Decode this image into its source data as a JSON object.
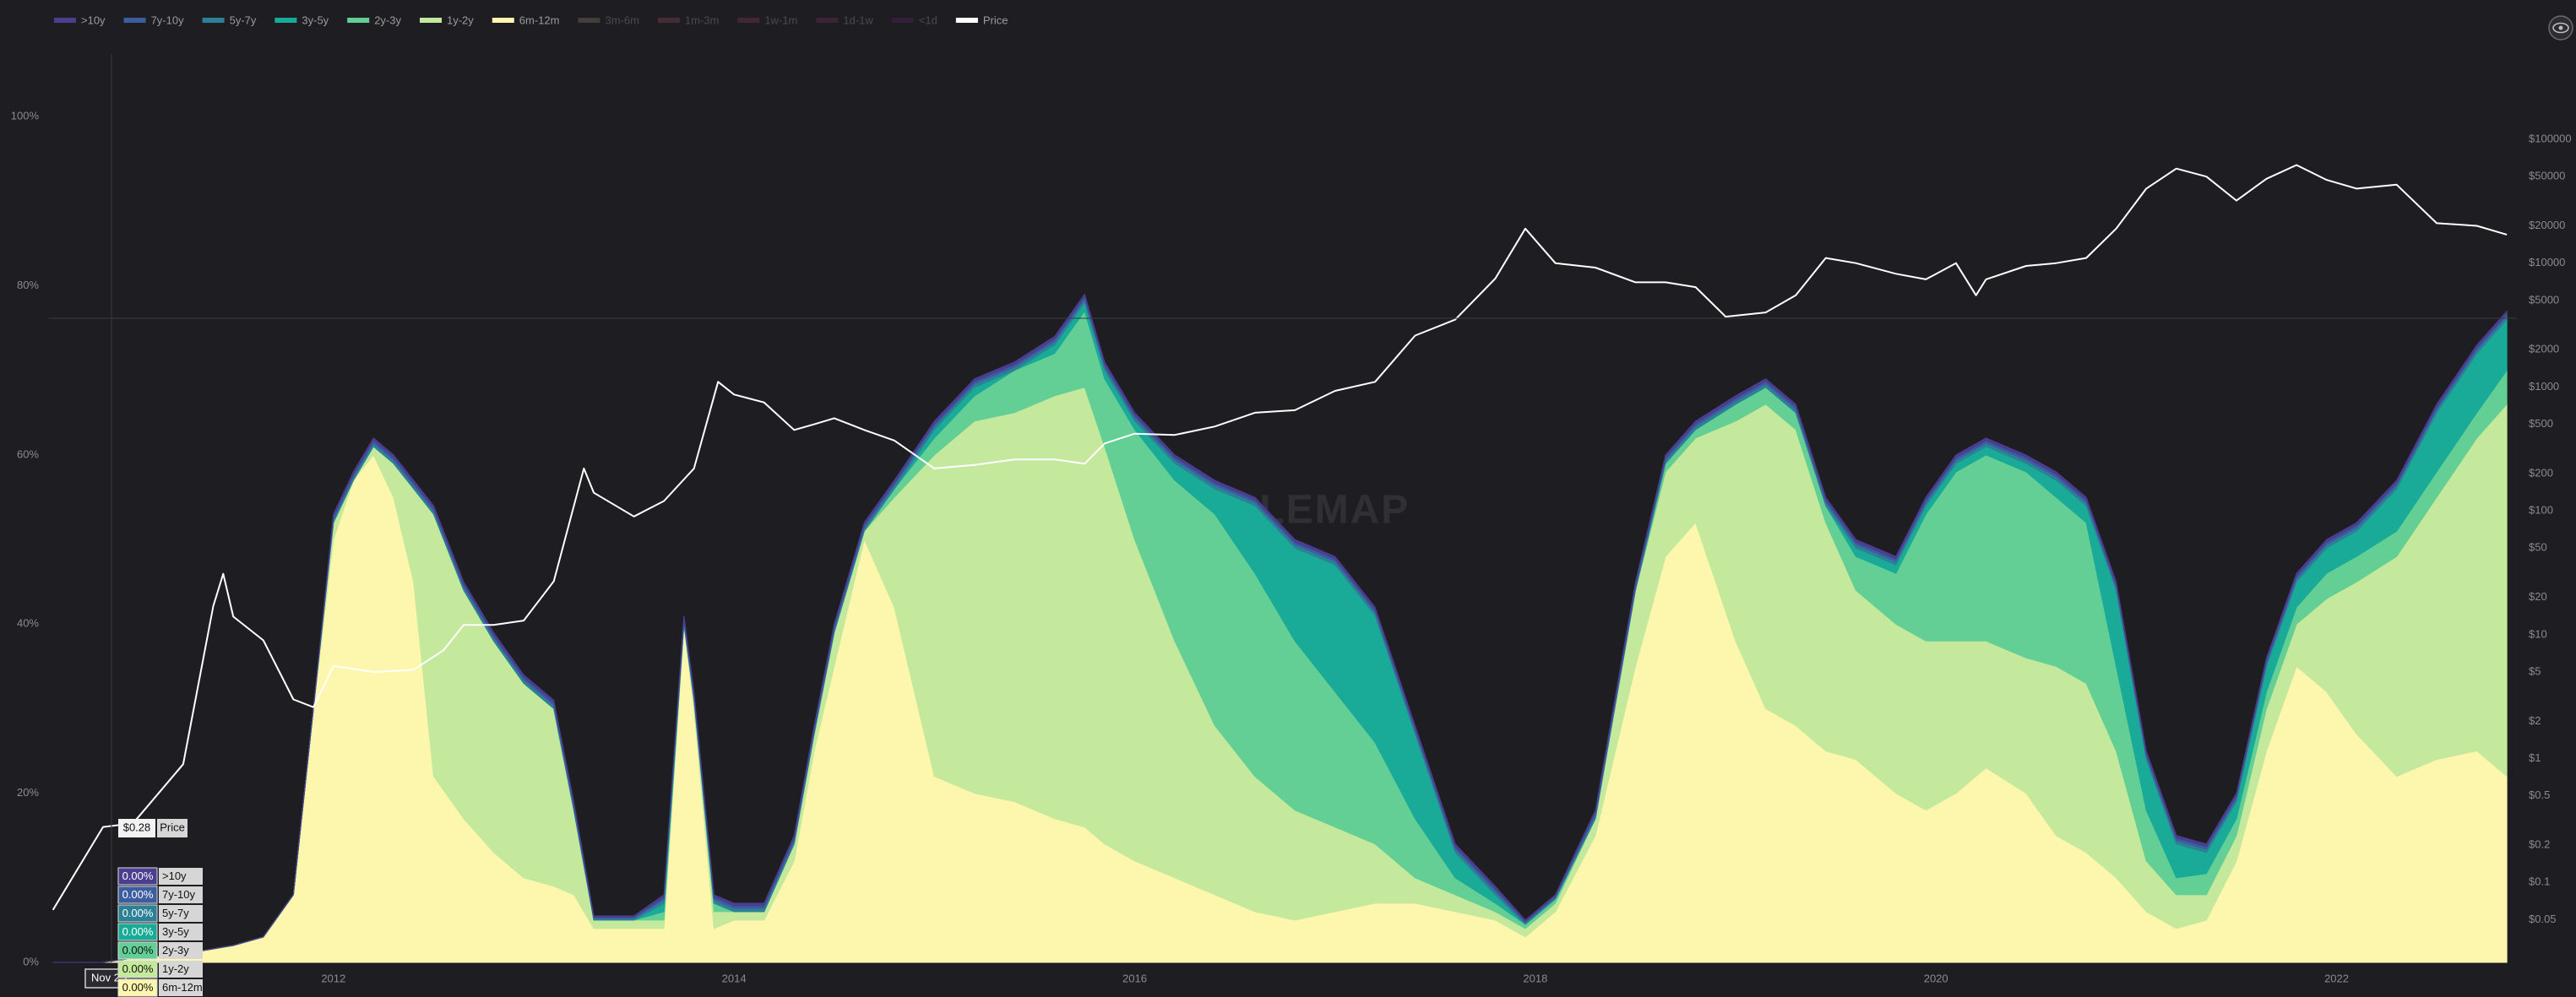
{
  "chart_data": {
    "type": "area",
    "stacked": true,
    "watermark": "WHALEMAP",
    "x": [
      2010.6,
      2010.85,
      2011.0,
      2011.25,
      2011.5,
      2011.65,
      2011.8,
      2011.9,
      2012.0,
      2012.1,
      2012.2,
      2012.3,
      2012.4,
      2012.5,
      2012.65,
      2012.8,
      2012.95,
      2013.1,
      2013.2,
      2013.3,
      2013.5,
      2013.65,
      2013.75,
      2013.8,
      2013.9,
      2014.0,
      2014.15,
      2014.3,
      2014.4,
      2014.5,
      2014.65,
      2014.8,
      2015.0,
      2015.2,
      2015.4,
      2015.6,
      2015.75,
      2015.85,
      2016.0,
      2016.2,
      2016.4,
      2016.6,
      2016.8,
      2017.0,
      2017.2,
      2017.4,
      2017.6,
      2017.8,
      2017.95,
      2018.1,
      2018.3,
      2018.5,
      2018.65,
      2018.8,
      2019.0,
      2019.15,
      2019.3,
      2019.45,
      2019.6,
      2019.8,
      2019.95,
      2020.1,
      2020.25,
      2020.45,
      2020.6,
      2020.75,
      2020.9,
      2021.05,
      2021.2,
      2021.35,
      2021.5,
      2021.65,
      2021.8,
      2021.95,
      2022.1,
      2022.3,
      2022.5,
      2022.7,
      2022.85
    ],
    "xlim": [
      2010.58,
      2022.9
    ],
    "xticks": [
      2012,
      2014,
      2016,
      2018,
      2020,
      2022
    ],
    "ylim": [
      0,
      107.4
    ],
    "yticks": [
      {
        "value": 0,
        "label": "0%"
      },
      {
        "value": 20,
        "label": "20%"
      },
      {
        "value": 40,
        "label": "40%"
      },
      {
        "value": 60,
        "label": "60%"
      },
      {
        "value": 80,
        "label": "80%"
      },
      {
        "value": 100,
        "label": "100%"
      }
    ],
    "y2lim": [
      0.0226,
      488000
    ],
    "y2_log": true,
    "y2ticks": [
      {
        "value": 100000,
        "label": "$100000"
      },
      {
        "value": 50000,
        "label": "$50000"
      },
      {
        "value": 20000,
        "label": "$20000"
      },
      {
        "value": 10000,
        "label": "$10000"
      },
      {
        "value": 5000,
        "label": "$5000"
      },
      {
        "value": 2000,
        "label": "$2000"
      },
      {
        "value": 1000,
        "label": "$1000"
      },
      {
        "value": 500,
        "label": "$500"
      },
      {
        "value": 200,
        "label": "$200"
      },
      {
        "value": 100,
        "label": "$100"
      },
      {
        "value": 50,
        "label": "$50"
      },
      {
        "value": 20,
        "label": "$20"
      },
      {
        "value": 10,
        "label": "$10"
      },
      {
        "value": 5,
        "label": "$5"
      },
      {
        "value": 2,
        "label": "$2"
      },
      {
        "value": 1,
        "label": "$1"
      },
      {
        "value": 0.5,
        "label": "$0.5"
      },
      {
        "value": 0.2,
        "label": "$0.2"
      },
      {
        "value": 0.1,
        "label": "$0.1"
      },
      {
        "value": 0.05,
        "label": "$0.05"
      }
    ],
    "grid": false,
    "series": [
      {
        "name": ">10y",
        "color": "#4b3d8f",
        "values": [
          0,
          0,
          0,
          0,
          0,
          0,
          0,
          0,
          0.3,
          0.3,
          0.3,
          0.3,
          0.3,
          0.3,
          0.3,
          0.3,
          0.3,
          0.3,
          0.3,
          0.15,
          0.15,
          0.3,
          0.3,
          0.3,
          0.3,
          0.3,
          0.3,
          0.3,
          0.3,
          0.3,
          0.3,
          0.3,
          0.3,
          0.3,
          0.3,
          0.3,
          0.3,
          0.3,
          0.3,
          0.3,
          0.3,
          0.3,
          0.3,
          0.3,
          0.3,
          0.3,
          0.3,
          0.3,
          0.15,
          0.15,
          0.3,
          0.3,
          0.3,
          0.3,
          0.3,
          0.3,
          0.3,
          0.3,
          0.3,
          0.3,
          0.3,
          0.3,
          0.3,
          0.3,
          0.3,
          0.3,
          0.3,
          0.3,
          0.3,
          0.3,
          0.3,
          0.3,
          0.3,
          0.3,
          0.3,
          0.3,
          0.3,
          0.3,
          0.3
        ]
      },
      {
        "name": "7y-10y",
        "color": "#3c5da0",
        "values": [
          0,
          0,
          0,
          0,
          0,
          0,
          0,
          0,
          0.3,
          0.3,
          0.3,
          0.3,
          0.3,
          0.3,
          0.3,
          0.3,
          0.3,
          0.3,
          0.3,
          0.15,
          0.15,
          0.3,
          0.3,
          0.3,
          0.3,
          0.3,
          0.3,
          0.3,
          0.3,
          0.3,
          0.3,
          0.3,
          0.3,
          0.3,
          0.3,
          0.3,
          0.3,
          0.3,
          0.3,
          0.3,
          0.3,
          0.3,
          0.3,
          0.3,
          0.3,
          0.3,
          0.3,
          0.3,
          0.15,
          0.15,
          0.3,
          0.3,
          0.3,
          0.3,
          0.3,
          0.3,
          0.3,
          0.3,
          0.3,
          0.3,
          0.3,
          0.3,
          0.3,
          0.3,
          0.3,
          0.3,
          0.3,
          0.3,
          0.3,
          0.3,
          0.3,
          0.3,
          0.3,
          0.3,
          0.3,
          0.3,
          0.3,
          0.3,
          0.3
        ]
      },
      {
        "name": "5y-7y",
        "color": "#2c8196",
        "values": [
          0,
          0,
          0,
          0,
          0,
          0,
          0,
          0,
          0.4,
          0.4,
          0.4,
          0.4,
          0.4,
          0.4,
          0.4,
          0.4,
          0.4,
          0.4,
          0.4,
          0.2,
          0.2,
          0.4,
          0.4,
          0.4,
          0.4,
          0.4,
          0.4,
          0.4,
          0.4,
          0.4,
          0.4,
          0.4,
          0.4,
          0.4,
          0.4,
          0.4,
          0.4,
          0.4,
          0.4,
          0.4,
          0.4,
          0.4,
          0.4,
          0.4,
          0.4,
          0.4,
          0.4,
          0.4,
          0.2,
          0.2,
          0.4,
          0.4,
          0.4,
          0.4,
          0.4,
          0.4,
          0.4,
          0.4,
          0.4,
          0.4,
          0.4,
          0.4,
          0.4,
          0.4,
          0.4,
          0.4,
          0.4,
          0.4,
          0.4,
          0.4,
          0.4,
          0.4,
          0.4,
          0.4,
          0.4,
          0.4,
          0.4,
          0.4,
          0.4
        ]
      },
      {
        "name": "3y-5y",
        "color": "#1aaa98",
        "values": [
          0,
          0,
          0,
          0,
          0,
          0,
          0,
          0,
          0,
          0,
          0,
          0,
          0,
          0,
          0,
          0,
          0,
          0,
          0,
          0,
          0,
          1,
          0,
          0,
          0,
          0,
          0,
          0,
          0,
          0,
          0,
          0,
          1,
          1,
          0,
          1,
          1,
          1,
          1,
          2,
          3,
          8,
          11,
          15,
          15,
          10,
          3,
          1,
          0,
          0,
          0,
          0,
          0,
          0,
          0,
          0,
          0,
          0,
          1,
          1,
          1,
          1,
          1,
          1,
          2,
          2,
          9,
          6,
          4,
          2.5,
          2,
          3,
          3,
          3,
          3,
          5,
          7,
          7,
          6
        ]
      },
      {
        "name": "2y-3y",
        "color": "#63cf95",
        "values": [
          0,
          0,
          0,
          0,
          0,
          0,
          0,
          0,
          0,
          0,
          0,
          0,
          0,
          0,
          0,
          0,
          0,
          0,
          0,
          0,
          0,
          1,
          0,
          0,
          1,
          0,
          0,
          0,
          0,
          0,
          0,
          1,
          2,
          3,
          5,
          5,
          9,
          8,
          13,
          19,
          25,
          24,
          20,
          16,
          12,
          7,
          2,
          1,
          0.5,
          0.5,
          0,
          0,
          1,
          1,
          2,
          2,
          2,
          2,
          4,
          6,
          15,
          20,
          22,
          22,
          20,
          19,
          10,
          6,
          2,
          2.5,
          2,
          2,
          2,
          3,
          3,
          3,
          3,
          3,
          4
        ]
      },
      {
        "name": "1y-2y",
        "color": "#c4e99c",
        "values": [
          0,
          0,
          0,
          0,
          0,
          0,
          0,
          0,
          2,
          0,
          1,
          4,
          11,
          31,
          27,
          25,
          23,
          21,
          10,
          1,
          1,
          1,
          0,
          1,
          2,
          1,
          1,
          2,
          2,
          4,
          1,
          13,
          38,
          44,
          46,
          50,
          52,
          47,
          38,
          28,
          20,
          16,
          13,
          10,
          7,
          3,
          2,
          1,
          1,
          1,
          2,
          9,
          10,
          10,
          26,
          36,
          35,
          27,
          20,
          20,
          20,
          18,
          15,
          16,
          20,
          20,
          15,
          6,
          4,
          3,
          3,
          5,
          5,
          11,
          18,
          26,
          31,
          37,
          44
        ]
      },
      {
        "name": "6m-12m",
        "color": "#fdf6ad",
        "values": [
          0,
          0,
          0.5,
          1,
          2,
          3,
          8,
          30,
          50,
          57,
          60,
          55,
          45,
          22,
          17,
          13,
          10,
          9,
          8,
          4,
          4,
          4,
          40,
          30,
          4,
          5,
          5,
          12,
          25,
          35,
          50,
          42,
          22,
          20,
          19,
          17,
          16,
          14,
          12,
          10,
          8,
          6,
          5,
          6,
          7,
          7,
          6,
          5,
          3,
          6,
          15,
          35,
          48,
          52,
          38,
          30,
          28,
          25,
          24,
          20,
          18,
          20,
          23,
          20,
          15,
          13,
          10,
          6,
          4,
          5,
          12,
          25,
          35,
          32,
          27,
          22,
          24,
          25,
          22
        ]
      },
      {
        "name": "3m-6m",
        "color": "#8b7a6b",
        "hidden": true
      },
      {
        "name": "1m-3m",
        "color": "#8d4a5a",
        "hidden": true
      },
      {
        "name": "1w-1m",
        "color": "#8a3558",
        "hidden": true
      },
      {
        "name": "1d-1w",
        "color": "#7a2b5a",
        "hidden": true
      },
      {
        "name": "<1d",
        "color": "#5a1f6b",
        "hidden": true
      },
      {
        "name": "Price",
        "color": "#ffffff",
        "type": "line",
        "axis": "y2",
        "x": [
          2010.6,
          2010.85,
          2011.0,
          2011.25,
          2011.4,
          2011.45,
          2011.5,
          2011.65,
          2011.8,
          2011.9,
          2012.0,
          2012.2,
          2012.4,
          2012.55,
          2012.65,
          2012.8,
          2012.95,
          2013.1,
          2013.25,
          2013.3,
          2013.5,
          2013.65,
          2013.8,
          2013.92,
          2014.0,
          2014.15,
          2014.3,
          2014.4,
          2014.5,
          2014.65,
          2014.8,
          2015.0,
          2015.2,
          2015.4,
          2015.6,
          2015.75,
          2015.85,
          2016.0,
          2016.2,
          2016.4,
          2016.6,
          2016.8,
          2017.0,
          2017.2,
          2017.4,
          2017.6,
          2017.8,
          2017.95,
          2018.1,
          2018.3,
          2018.5,
          2018.65,
          2018.8,
          2018.95,
          2019.15,
          2019.3,
          2019.45,
          2019.6,
          2019.8,
          2019.95,
          2020.1,
          2020.2,
          2020.25,
          2020.45,
          2020.6,
          2020.75,
          2020.9,
          2021.05,
          2021.2,
          2021.35,
          2021.5,
          2021.65,
          2021.8,
          2021.95,
          2022.1,
          2022.3,
          2022.5,
          2022.7,
          2022.85
        ],
        "values": [
          0.06,
          0.28,
          0.3,
          0.9,
          17,
          31,
          14,
          9,
          3,
          2.6,
          5.6,
          5,
          5.2,
          7.5,
          12,
          12,
          13,
          27,
          220,
          140,
          90,
          120,
          220,
          1100,
          870,
          750,
          450,
          500,
          560,
          450,
          370,
          220,
          235,
          260,
          260,
          240,
          350,
          420,
          410,
          480,
          620,
          650,
          930,
          1100,
          2600,
          3500,
          7500,
          19000,
          10000,
          9200,
          7000,
          7000,
          6400,
          3700,
          4000,
          5500,
          11000,
          10000,
          8200,
          7400,
          10000,
          5500,
          7400,
          9500,
          10000,
          11000,
          19000,
          40000,
          58000,
          50000,
          32000,
          48000,
          62000,
          47000,
          40000,
          43000,
          21000,
          20000,
          17000
        ]
      }
    ],
    "tooltip": {
      "date": "Nov 2",
      "price": "$0.28",
      "price_name": "Price",
      "rows": [
        {
          "value": "0.00%",
          "name": ">10y"
        },
        {
          "value": "0.00%",
          "name": "7y-10y"
        },
        {
          "value": "0.00%",
          "name": "5y-7y"
        },
        {
          "value": "0.00%",
          "name": "3y-5y"
        },
        {
          "value": "0.00%",
          "name": "2y-3y"
        },
        {
          "value": "0.00%",
          "name": "1y-2y"
        },
        {
          "value": "0.00%",
          "name": "6m-12m"
        }
      ]
    }
  }
}
